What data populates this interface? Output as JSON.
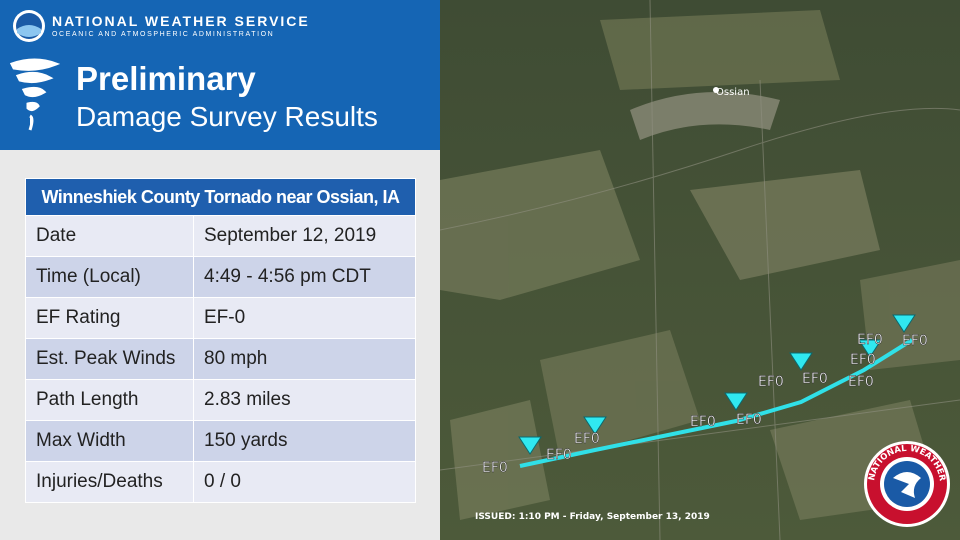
{
  "header": {
    "agency": "NATIONAL WEATHER SERVICE",
    "subagency": "OCEANIC AND ATMOSPHERIC ADMINISTRATION",
    "title": "Preliminary",
    "subtitle": "Damage Survey Results"
  },
  "table": {
    "title": "Winneshiek County Tornado near Ossian, IA",
    "rows": [
      [
        "Date",
        "September 12, 2019"
      ],
      [
        "Time (Local)",
        "4:49 - 4:56 pm CDT"
      ],
      [
        "EF Rating",
        "EF-0"
      ],
      [
        "Est. Peak Winds",
        "80 mph"
      ],
      [
        "Path Length",
        "2.83 miles"
      ],
      [
        "Max Width",
        "150 yards"
      ],
      [
        "Injuries/Deaths",
        "0 / 0"
      ]
    ]
  },
  "map": {
    "town": "Ossian",
    "ef_labels": [
      "EF0",
      "EF0",
      "EF0",
      "EF0",
      "EF0",
      "EF0",
      "EF0",
      "EF0",
      "EF0",
      "EF0",
      "EF0"
    ],
    "issued": "ISSUED: 1:10 PM - Friday, September 13, 2019",
    "seal_text": "NATIONAL WEATHER SERVICE"
  }
}
